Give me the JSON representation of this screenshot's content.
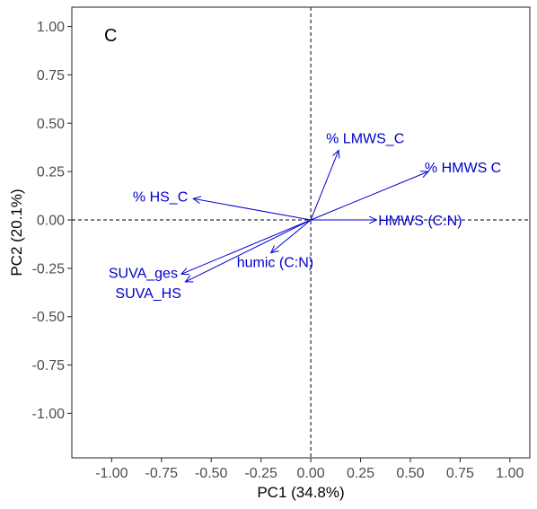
{
  "panel_label": "C",
  "colors": {
    "vector": "#0000cc",
    "frame": "#333333",
    "tick_text": "#4d4d4d",
    "guide": "#000000"
  },
  "chart_data": {
    "type": "scatter",
    "subtype": "pca-biplot-loadings",
    "title": "",
    "xlabel": "PC1 (34.8%)",
    "ylabel": "PC2 (20.1%)",
    "xlim": [
      -1.2,
      1.1
    ],
    "ylim": [
      -1.23,
      1.1
    ],
    "x_ticks": [
      -1.0,
      -0.75,
      -0.5,
      -0.25,
      0.0,
      0.25,
      0.5,
      0.75,
      1.0
    ],
    "x_tick_labels": [
      "-1.00",
      "-0.75",
      "-0.50",
      "-0.25",
      "0.00",
      "0.25",
      "0.50",
      "0.75",
      "1.00"
    ],
    "y_ticks": [
      1.0,
      0.75,
      0.5,
      0.25,
      0.0,
      -0.25,
      -0.5,
      -0.75,
      -1.0
    ],
    "y_tick_labels": [
      "1.00",
      "0.75",
      "0.50",
      "0.25",
      "0.00",
      "-0.25",
      "-0.50",
      "-0.75",
      "-1.00"
    ],
    "grid": false,
    "reference_lines": {
      "x": 0,
      "y": 0,
      "style": "dashed"
    },
    "vectors": [
      {
        "label": "% LMWS_C",
        "x": 0.14,
        "y": 0.36
      },
      {
        "label": "% HMWS C",
        "x": 0.59,
        "y": 0.25
      },
      {
        "label": "% HS_C",
        "x": -0.59,
        "y": 0.11
      },
      {
        "label": "HMWS (C:N)",
        "x": 0.33,
        "y": 0.0
      },
      {
        "label": "humic (C:N)",
        "x": -0.2,
        "y": -0.17
      },
      {
        "label": "SUVA_ges",
        "x": -0.65,
        "y": -0.28
      },
      {
        "label": "SUVA_HS",
        "x": -0.63,
        "y": -0.32
      }
    ]
  }
}
